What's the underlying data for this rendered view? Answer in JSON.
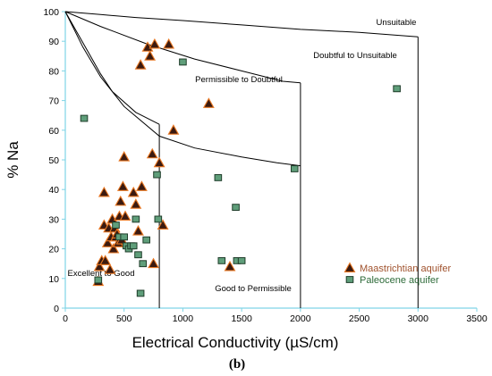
{
  "chart_data": {
    "type": "scatter",
    "title": "",
    "xlabel": "Electrical Conductivity (µS/cm)",
    "ylabel": "% Na",
    "xlim": [
      0,
      3500
    ],
    "ylim": [
      0,
      100
    ],
    "xticks": [
      0,
      500,
      1000,
      1500,
      2000,
      2500,
      3000,
      3500
    ],
    "yticks": [
      0,
      10,
      20,
      30,
      40,
      50,
      60,
      70,
      80,
      90,
      100
    ],
    "grid": false,
    "legend_position": "bottom-right",
    "panel_label": "(b)",
    "regions": [
      {
        "label": "Unsuitable"
      },
      {
        "label": "Doubtful to Unsuitable"
      },
      {
        "label": "Permissible to Doubtful"
      },
      {
        "label": "Excellent to Good"
      },
      {
        "label": "Good to Permissible"
      }
    ],
    "boundaries": [
      {
        "x": [
          0,
          300,
          600,
          1000,
          1500,
          2000,
          2500,
          3000
        ],
        "y": [
          100,
          99,
          98,
          97,
          95.5,
          94,
          93,
          91.5
        ]
      },
      {
        "x": [
          0,
          300,
          700,
          1100,
          1500,
          1850,
          2000
        ],
        "y": [
          100,
          95,
          89,
          84,
          80,
          76.5,
          76
        ]
      },
      {
        "x": [
          0,
          150,
          300,
          500,
          800,
          1100,
          1500,
          1800,
          2000
        ],
        "y": [
          100,
          88,
          78,
          68,
          58,
          54,
          51,
          49,
          48
        ]
      },
      {
        "x": [
          0,
          100,
          200,
          300,
          400,
          600,
          800
        ],
        "y": [
          100,
          93,
          86,
          79,
          73,
          66,
          62
        ]
      },
      {
        "x": [
          800,
          800
        ],
        "y": [
          62,
          0
        ]
      },
      {
        "x": [
          2000,
          2000
        ],
        "y": [
          76,
          0
        ]
      },
      {
        "x": [
          3000,
          3000
        ],
        "y": [
          91.5,
          0
        ]
      }
    ],
    "series": [
      {
        "name": "Maastrichtian aquifer",
        "color": "#e87722",
        "marker": "triangle",
        "x": [
          280,
          290,
          310,
          330,
          330,
          340,
          360,
          370,
          380,
          390,
          400,
          410,
          420,
          430,
          440,
          450,
          460,
          470,
          480,
          490,
          500,
          510,
          580,
          600,
          620,
          640,
          650,
          700,
          720,
          740,
          750,
          760,
          800,
          830,
          880,
          920,
          1220,
          1400
        ],
        "y": [
          9,
          14,
          16,
          28,
          39,
          16,
          22,
          27,
          13,
          24,
          30,
          20,
          27,
          24,
          25,
          22,
          31,
          36,
          23,
          41,
          51,
          31,
          39,
          35,
          26,
          82,
          41,
          88,
          85,
          52,
          15,
          89,
          49,
          28,
          89,
          60,
          69,
          14
        ]
      },
      {
        "name": "Paleocene aquifer",
        "color": "#2e6b3a",
        "marker": "square",
        "x": [
          160,
          280,
          430,
          460,
          500,
          520,
          540,
          560,
          580,
          600,
          620,
          640,
          660,
          690,
          780,
          790,
          1000,
          1300,
          1330,
          1450,
          1460,
          1500,
          1950,
          2820
        ],
        "y": [
          64,
          9.5,
          28,
          24,
          24,
          21,
          20,
          21,
          21,
          30,
          18,
          5,
          15,
          23,
          45,
          30,
          83,
          44,
          16,
          34,
          16,
          16,
          47,
          74
        ]
      }
    ]
  }
}
